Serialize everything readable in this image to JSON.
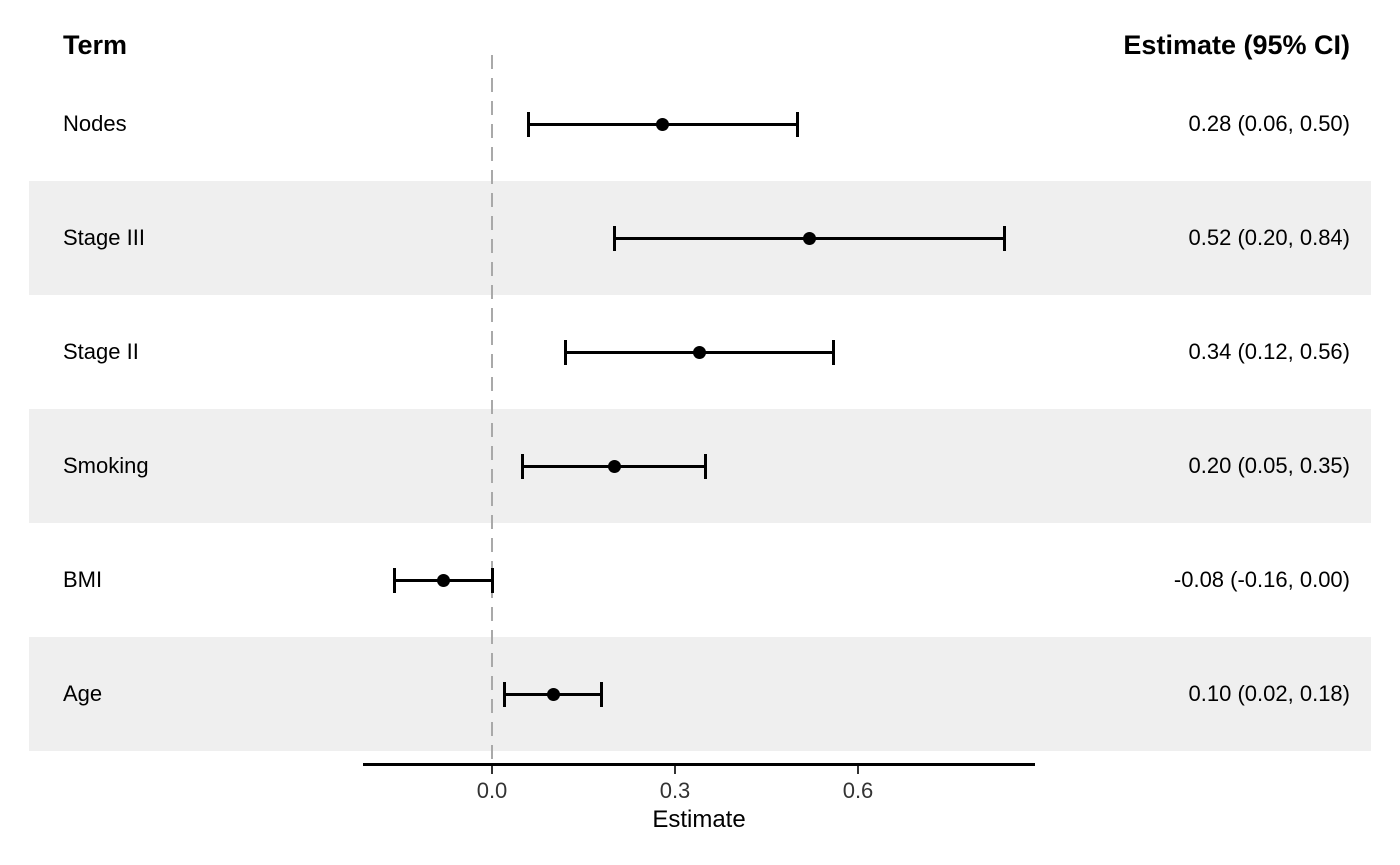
{
  "chart_data": {
    "type": "scatter",
    "subtype": "forest-plot",
    "term_header": "Term",
    "estimate_header": "Estimate (95% CI)",
    "xlabel": "Estimate",
    "x_ticks": [
      0.0,
      0.3,
      0.6
    ],
    "x_tick_labels": [
      "0.0",
      "0.3",
      "0.6"
    ],
    "xlim": [
      -0.21,
      0.89
    ],
    "zero_reference": 0.0,
    "grid": false,
    "legend": false,
    "rows": [
      {
        "term": "Nodes",
        "estimate": 0.28,
        "ci_low": 0.06,
        "ci_high": 0.5,
        "label": "0.28 (0.06, 0.50)",
        "shaded": false
      },
      {
        "term": "Stage III",
        "estimate": 0.52,
        "ci_low": 0.2,
        "ci_high": 0.84,
        "label": "0.52 (0.20, 0.84)",
        "shaded": true
      },
      {
        "term": "Stage II",
        "estimate": 0.34,
        "ci_low": 0.12,
        "ci_high": 0.56,
        "label": "0.34 (0.12, 0.56)",
        "shaded": false
      },
      {
        "term": "Smoking",
        "estimate": 0.2,
        "ci_low": 0.05,
        "ci_high": 0.35,
        "label": "0.20 (0.05, 0.35)",
        "shaded": true
      },
      {
        "term": "BMI",
        "estimate": -0.08,
        "ci_low": -0.16,
        "ci_high": 0.0,
        "label": "-0.08 (-0.16, 0.00)",
        "shaded": false
      },
      {
        "term": "Age",
        "estimate": 0.1,
        "ci_low": 0.02,
        "ci_high": 0.18,
        "label": "0.10 (0.02, 0.18)",
        "shaded": true
      }
    ],
    "colors": {
      "background": "#ffffff",
      "band": "#efefef",
      "zero_line": "#a9a9a9",
      "marker": "#000000",
      "axis_line": "#000000",
      "tick_text": "#333333"
    }
  }
}
